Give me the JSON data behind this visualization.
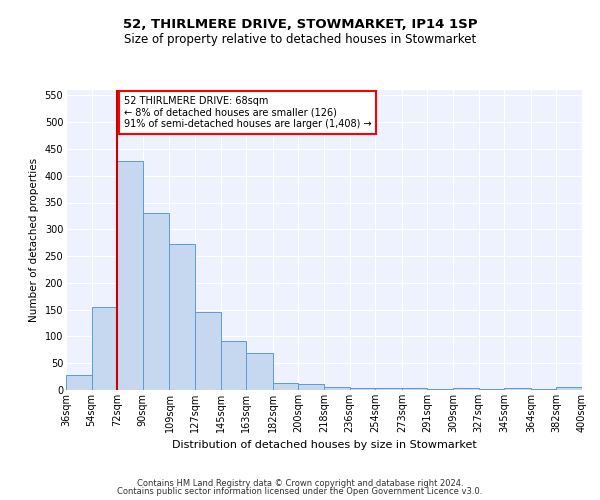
{
  "title": "52, THIRLMERE DRIVE, STOWMARKET, IP14 1SP",
  "subtitle": "Size of property relative to detached houses in Stowmarket",
  "xlabel": "Distribution of detached houses by size in Stowmarket",
  "ylabel": "Number of detached properties",
  "footer1": "Contains HM Land Registry data © Crown copyright and database right 2024.",
  "footer2": "Contains public sector information licensed under the Open Government Licence v3.0.",
  "annotation_line1": "52 THIRLMERE DRIVE: 68sqm",
  "annotation_line2": "← 8% of detached houses are smaller (126)",
  "annotation_line3": "91% of semi-detached houses are larger (1,408) →",
  "bar_color": "#c5d8f0",
  "bar_edge_color": "#5b9bd5",
  "bins": [
    36,
    54,
    72,
    90,
    109,
    127,
    145,
    163,
    182,
    200,
    218,
    236,
    254,
    273,
    291,
    309,
    327,
    345,
    364,
    382,
    400
  ],
  "values": [
    28,
    155,
    428,
    330,
    273,
    146,
    92,
    70,
    14,
    11,
    6,
    4,
    4,
    4,
    1,
    3,
    1,
    3,
    1,
    5
  ],
  "property_line_x": 72,
  "ylim": [
    0,
    560
  ],
  "yticks": [
    0,
    50,
    100,
    150,
    200,
    250,
    300,
    350,
    400,
    450,
    500,
    550
  ],
  "bg_color": "#eef2ff",
  "red_line_color": "#cc0000",
  "grid_color": "#ffffff",
  "title_fontsize": 9.5,
  "subtitle_fontsize": 8.5,
  "ylabel_fontsize": 7.5,
  "xlabel_fontsize": 8,
  "tick_fontsize": 7,
  "annotation_fontsize": 7,
  "footer_fontsize": 6
}
